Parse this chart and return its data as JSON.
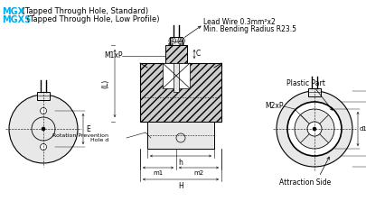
{
  "title_mgx": "MGX",
  "title_mgx_desc": " (Tapped Through Hole, Standard)",
  "title_mgxs": "MGXS",
  "title_mgxs_desc": " (Tapped Through Hole, Low Profile)",
  "lead_wire_text": "Lead Wire 0.3mm²x2",
  "bend_radius_text": "Min. Bending Radius R23.5",
  "cyan_color": "#00AEEF",
  "black_color": "#000000",
  "light_gray": "#E8E8E8",
  "mid_gray": "#CCCCCC",
  "bg_color": "#FFFFFF"
}
